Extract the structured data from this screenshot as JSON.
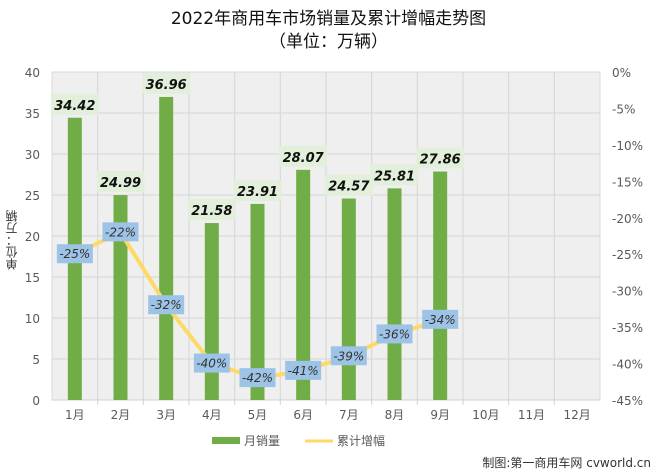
{
  "chart_data": {
    "type": "bar+line",
    "title": "2022年商用车市场销量及累计增幅走势图",
    "subtitle": "（单位：万辆）",
    "categories": [
      "1月",
      "2月",
      "3月",
      "4月",
      "5月",
      "6月",
      "7月",
      "8月",
      "9月",
      "10月",
      "11月",
      "12月"
    ],
    "series": [
      {
        "name": "月销量",
        "type": "bar",
        "axis": "left",
        "color": "#70ad47",
        "values": [
          34.42,
          24.99,
          36.96,
          21.58,
          23.91,
          28.07,
          24.57,
          25.81,
          27.86,
          null,
          null,
          null
        ]
      },
      {
        "name": "累计增幅",
        "type": "line",
        "axis": "right",
        "color": "#ffd966",
        "values": [
          -25,
          -22,
          -32,
          -40,
          -42,
          -41,
          -39,
          -36,
          -34,
          null,
          null,
          null
        ]
      }
    ],
    "ylabel": "单位：万辆",
    "ylim": [
      0,
      40
    ],
    "yticks": [
      0,
      5,
      10,
      15,
      20,
      25,
      30,
      35,
      40
    ],
    "y2lim": [
      -45,
      0
    ],
    "y2ticks": [
      "0%",
      "-5%",
      "-10%",
      "-15%",
      "-20%",
      "-25%",
      "-30%",
      "-35%",
      "-40%",
      "-45%"
    ],
    "grid": true,
    "legend_position": "bottom",
    "legend": [
      "月销量",
      "累计增幅"
    ]
  },
  "header": {
    "title": "2022年商用车市场销量及累计增幅走势图",
    "subtitle": "（单位：万辆）"
  },
  "axis": {
    "y_title": "单位：万辆"
  },
  "legend": {
    "bar_label": "月销量",
    "line_label": "累计增幅"
  },
  "footer": {
    "credit": "制图:第一商用车网 cvworld.cn"
  },
  "colors": {
    "bar": "#70ad47",
    "line": "#ffd966",
    "bar_label_bg": "#e2efda",
    "line_label_bg": "#9dc3e6",
    "plot_bg": "#efefef",
    "grid": "#d9d9d9"
  }
}
